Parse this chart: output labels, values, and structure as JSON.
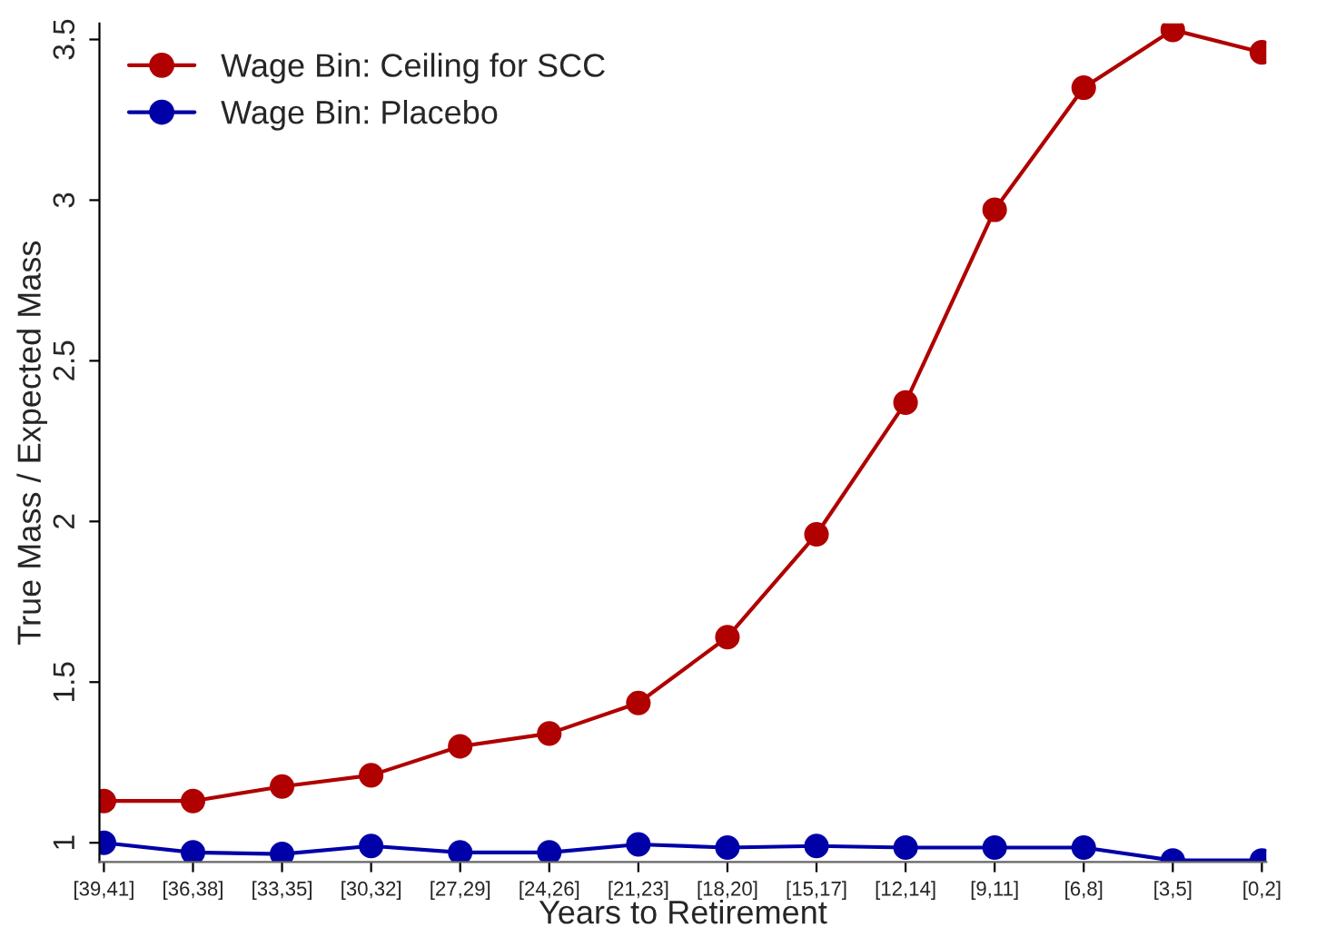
{
  "chart_data": {
    "type": "line",
    "xlabel": "Years to Retirement",
    "ylabel": "True Mass / Expected Mass",
    "categories": [
      "[39,41]",
      "[36,38]",
      "[33,35]",
      "[30,32]",
      "[27,29]",
      "[24,26]",
      "[21,23]",
      "[18,20]",
      "[15,17]",
      "[12,14]",
      "[9,11]",
      "[6,8]",
      "[3,5]",
      "[0,2]"
    ],
    "series": [
      {
        "name": "Wage Bin: Ceiling for SCC",
        "color": "#b00000",
        "values": [
          1.13,
          1.13,
          1.175,
          1.21,
          1.3,
          1.34,
          1.435,
          1.64,
          1.96,
          2.37,
          2.97,
          3.35,
          3.53,
          3.46
        ]
      },
      {
        "name": "Wage Bin: Placebo",
        "color": "#0000a8",
        "values": [
          1.0,
          0.97,
          0.965,
          0.99,
          0.97,
          0.97,
          0.995,
          0.985,
          0.99,
          0.985,
          0.985,
          0.985,
          0.945,
          0.945
        ]
      }
    ],
    "ylim": [
      0.94,
      3.55
    ],
    "yticks": [
      1,
      1.5,
      2,
      2.5,
      3,
      3.5
    ],
    "marker": "circle",
    "line_style": "solid",
    "legend": "top left",
    "grid": false
  }
}
